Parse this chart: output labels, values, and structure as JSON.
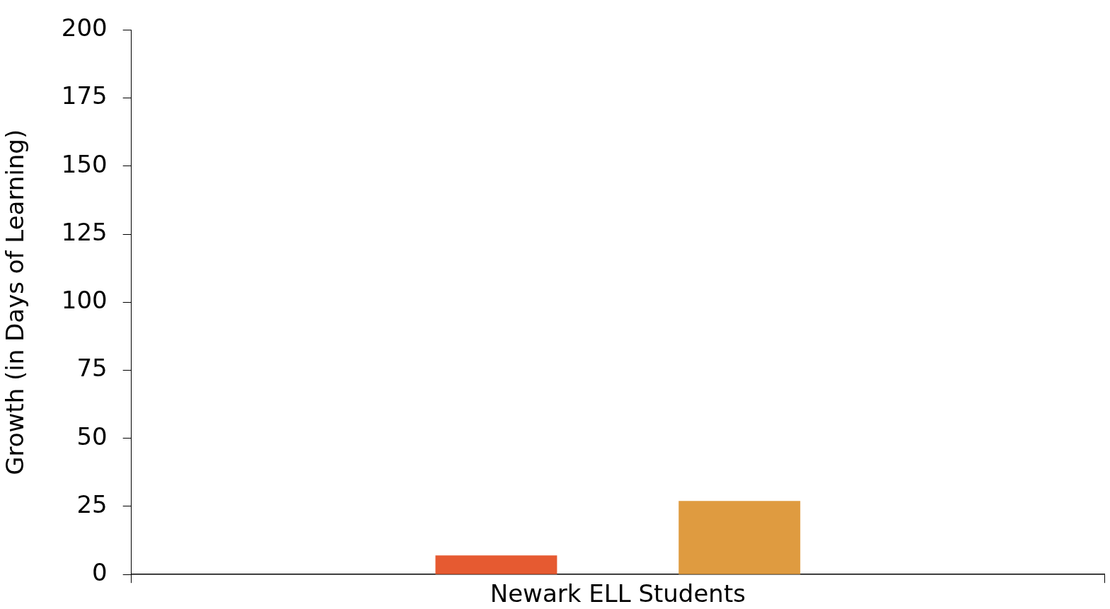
{
  "chart_data": {
    "type": "bar",
    "ylabel": "Growth (in Days of Learning)",
    "categories": [
      "Newark ELL Students"
    ],
    "series": [
      {
        "color": "#e65a31",
        "values": [
          7
        ]
      },
      {
        "color": "#df9b40",
        "values": [
          27
        ]
      }
    ],
    "ylim": [
      0,
      200
    ],
    "yticks": [
      0,
      25,
      50,
      75,
      100,
      125,
      150,
      175,
      200
    ],
    "grid": false,
    "legend": false
  }
}
